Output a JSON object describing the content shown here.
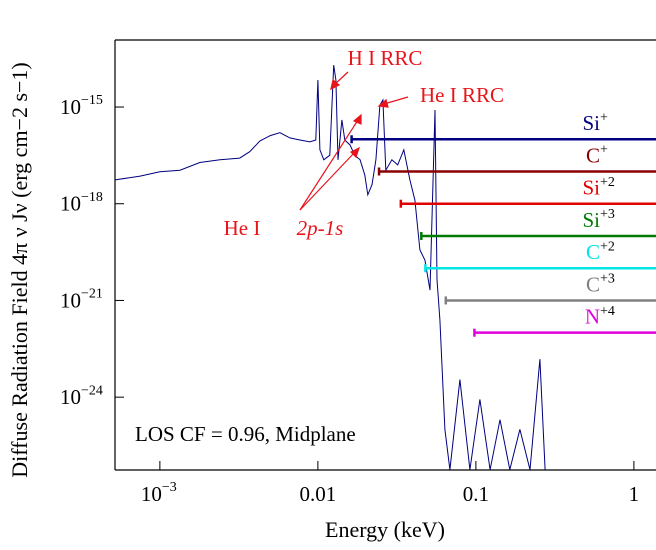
{
  "chart_data": {
    "type": "line",
    "xlabel": "Energy (keV)",
    "ylabel": "Diffuse Radiation Field  4π ν Jν (erg cm−2 s−1)",
    "xlog": true,
    "ylog": true,
    "xlim": [
      0.00052,
      1.38
    ],
    "ylim": [
      5.5e-27,
      1.2e-13
    ],
    "xticks": [
      {
        "value": 0.001,
        "label": "10",
        "exp": "−3"
      },
      0.01,
      0.1,
      1
    ],
    "yticks": [
      {
        "value": 1e-15,
        "label": "10",
        "exp": "−15"
      },
      {
        "value": 1e-18,
        "label": "10",
        "exp": "−18"
      },
      {
        "value": 1e-21,
        "label": "10",
        "exp": "−21"
      },
      {
        "value": 1e-24,
        "label": "10",
        "exp": "−24"
      }
    ],
    "x": [
      0.00052,
      0.00075,
      0.001,
      0.00134,
      0.00179,
      0.0024,
      0.0032,
      0.0037,
      0.0043,
      0.005,
      0.00575,
      0.00665,
      0.0077,
      0.0089,
      0.0097,
      0.01,
      0.0103,
      0.0109,
      0.0119,
      0.0126,
      0.013,
      0.0134,
      0.0142,
      0.0148,
      0.016,
      0.0171,
      0.0185,
      0.0198,
      0.0207,
      0.022,
      0.0233,
      0.0247,
      0.0258,
      0.0269,
      0.0294,
      0.032,
      0.035,
      0.0382,
      0.0411,
      0.0442,
      0.0476,
      0.0512,
      0.0551,
      0.0567,
      0.0592,
      0.0637,
      0.0685,
      0.0792,
      0.0916,
      0.106,
      0.123,
      0.142,
      0.164,
      0.19,
      0.22,
      0.254,
      0.274
    ],
    "series": [
      {
        "color": "#000080",
        "values": [
          5.5e-18,
          7.2e-18,
          9.8e-18,
          1.1e-17,
          1.9e-17,
          2.3e-17,
          2.6e-17,
          4.1e-17,
          8.9e-17,
          1.3e-16,
          1.6e-16,
          1.1e-16,
          9.5e-17,
          8.3e-17,
          9.5e-17,
          6.9e-15,
          4.7e-17,
          2.3e-17,
          3.2e-17,
          2e-14,
          6.9e-15,
          2.3e-17,
          4e-16,
          9.5e-17,
          6.6e-17,
          3.2e-17,
          2.3e-17,
          7.8e-18,
          1.9e-18,
          3.9e-18,
          2.3e-17,
          1.15e-15,
          1.65e-15,
          1.1e-17,
          2.3e-17,
          1.6e-17,
          4.7e-17,
          5.5e-18,
          1.3e-18,
          3.7e-20,
          1.8e-20,
          2.1e-21,
          8.1e-16,
          4.4e-21,
          2.5e-22,
          1e-25,
          5.6e-27,
          3.5e-24,
          5.6e-27,
          8.5e-25,
          5.6e-27,
          2e-25,
          5.6e-27,
          1e-25,
          5.6e-27,
          1.5e-23,
          5.6e-27
        ]
      }
    ],
    "ions": [
      {
        "element": "Si",
        "charge": "+",
        "color": "#000080",
        "threshold": 0.01635,
        "level": 1e-16
      },
      {
        "element": "C",
        "charge": "+",
        "color": "#8b0000",
        "threshold": 0.02438,
        "level": 1e-17
      },
      {
        "element": "Si",
        "charge": "+2",
        "color": "#e00000",
        "threshold": 0.03349,
        "level": 1e-18
      },
      {
        "element": "Si",
        "charge": "+3",
        "color": "#007a00",
        "threshold": 0.04514,
        "level": 1e-19
      },
      {
        "element": "C",
        "charge": "+2",
        "color": "#00e5e5",
        "threshold": 0.04789,
        "level": 1e-20
      },
      {
        "element": "C",
        "charge": "+3",
        "color": "#808080",
        "threshold": 0.06449,
        "level": 1e-21
      },
      {
        "element": "N",
        "charge": "+4",
        "color": "#e000e0",
        "threshold": 0.09789,
        "level": 1e-22
      }
    ],
    "annotations": [
      "H I RRC",
      "He I RRC",
      "He I",
      "2p-1s",
      "LOS CF = 0.96, Midplane"
    ]
  }
}
